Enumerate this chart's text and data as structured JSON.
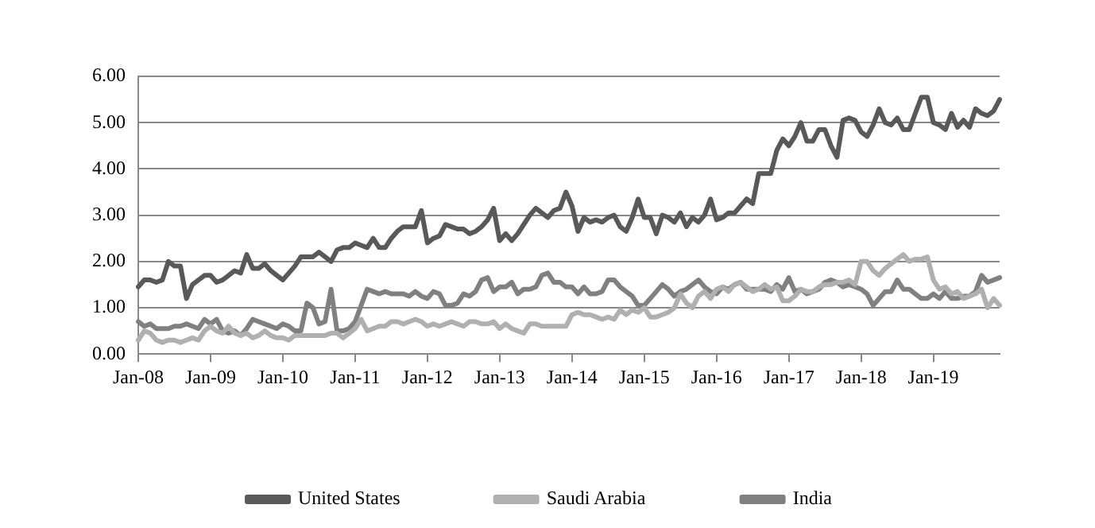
{
  "chart_data": {
    "type": "line",
    "categories": [
      "Jan-08",
      null,
      null,
      null,
      null,
      null,
      null,
      null,
      null,
      null,
      null,
      null,
      "Jan-09",
      null,
      null,
      null,
      null,
      null,
      null,
      null,
      null,
      null,
      null,
      null,
      "Jan-10",
      null,
      null,
      null,
      null,
      null,
      null,
      null,
      null,
      null,
      null,
      null,
      "Jan-11",
      null,
      null,
      null,
      null,
      null,
      null,
      null,
      null,
      null,
      null,
      null,
      "Jan-12",
      null,
      null,
      null,
      null,
      null,
      null,
      null,
      null,
      null,
      null,
      null,
      "Jan-13",
      null,
      null,
      null,
      null,
      null,
      null,
      null,
      null,
      null,
      null,
      null,
      "Jan-14",
      null,
      null,
      null,
      null,
      null,
      null,
      null,
      null,
      null,
      null,
      null,
      "Jan-15",
      null,
      null,
      null,
      null,
      null,
      null,
      null,
      null,
      null,
      null,
      null,
      "Jan-16",
      null,
      null,
      null,
      null,
      null,
      null,
      null,
      null,
      null,
      null,
      null,
      "Jan-17",
      null,
      null,
      null,
      null,
      null,
      null,
      null,
      null,
      null,
      null,
      null,
      "Jan-18",
      null,
      null,
      null,
      null,
      null,
      null,
      null,
      null,
      null,
      null,
      null,
      "Jan-19",
      null,
      null,
      null,
      null,
      null,
      null,
      null,
      null,
      null,
      null,
      null
    ],
    "series": [
      {
        "name": "United States",
        "color": "#595959",
        "values": [
          1.45,
          1.6,
          1.6,
          1.55,
          1.6,
          2.0,
          1.9,
          1.9,
          1.2,
          1.5,
          1.6,
          1.7,
          1.7,
          1.55,
          1.6,
          1.7,
          1.8,
          1.75,
          2.15,
          1.85,
          1.85,
          1.95,
          1.8,
          1.7,
          1.6,
          1.75,
          1.9,
          2.1,
          2.1,
          2.1,
          2.2,
          2.1,
          2.0,
          2.25,
          2.3,
          2.3,
          2.4,
          2.35,
          2.3,
          2.5,
          2.3,
          2.3,
          2.5,
          2.65,
          2.75,
          2.75,
          2.75,
          3.1,
          2.4,
          2.5,
          2.55,
          2.8,
          2.75,
          2.7,
          2.7,
          2.6,
          2.65,
          2.75,
          2.9,
          3.15,
          2.45,
          2.6,
          2.45,
          2.6,
          2.8,
          3.0,
          3.15,
          3.05,
          2.95,
          3.1,
          3.15,
          3.5,
          3.2,
          2.65,
          2.95,
          2.85,
          2.9,
          2.85,
          2.95,
          3.0,
          2.75,
          2.65,
          2.95,
          3.35,
          2.95,
          2.95,
          2.6,
          3.0,
          2.95,
          2.85,
          3.05,
          2.75,
          2.95,
          2.85,
          3.0,
          3.35,
          2.9,
          2.95,
          3.05,
          3.05,
          3.2,
          3.35,
          3.25,
          3.9,
          3.9,
          3.9,
          4.4,
          4.65,
          4.5,
          4.7,
          5.0,
          4.6,
          4.6,
          4.85,
          4.85,
          4.5,
          4.25,
          5.05,
          5.1,
          5.05,
          4.8,
          4.7,
          4.95,
          5.3,
          5.0,
          4.95,
          5.1,
          4.85,
          4.85,
          5.2,
          5.55,
          5.55,
          5.0,
          4.95,
          4.85,
          5.2,
          4.9,
          5.05,
          4.9,
          5.3,
          5.2,
          5.15,
          5.25,
          5.5
        ]
      },
      {
        "name": "Saudi Arabia",
        "color": "#b0b0b0",
        "values": [
          0.3,
          0.5,
          0.45,
          0.3,
          0.25,
          0.3,
          0.3,
          0.25,
          0.3,
          0.35,
          0.3,
          0.5,
          0.6,
          0.5,
          0.45,
          0.6,
          0.45,
          0.4,
          0.45,
          0.35,
          0.4,
          0.5,
          0.4,
          0.35,
          0.35,
          0.3,
          0.4,
          0.4,
          0.4,
          0.4,
          0.4,
          0.4,
          0.45,
          0.45,
          0.35,
          0.45,
          0.55,
          0.75,
          0.5,
          0.55,
          0.6,
          0.6,
          0.7,
          0.7,
          0.65,
          0.7,
          0.75,
          0.7,
          0.6,
          0.65,
          0.6,
          0.65,
          0.7,
          0.65,
          0.6,
          0.7,
          0.7,
          0.65,
          0.65,
          0.7,
          0.55,
          0.65,
          0.55,
          0.5,
          0.45,
          0.65,
          0.65,
          0.6,
          0.6,
          0.6,
          0.6,
          0.6,
          0.85,
          0.9,
          0.85,
          0.85,
          0.8,
          0.75,
          0.8,
          0.75,
          0.95,
          0.85,
          0.95,
          0.9,
          1.0,
          0.8,
          0.8,
          0.85,
          0.9,
          1.0,
          1.3,
          1.1,
          1.0,
          1.25,
          1.35,
          1.2,
          1.4,
          1.45,
          1.35,
          1.5,
          1.55,
          1.45,
          1.35,
          1.4,
          1.5,
          1.4,
          1.45,
          1.15,
          1.15,
          1.25,
          1.4,
          1.35,
          1.35,
          1.45,
          1.5,
          1.5,
          1.55,
          1.55,
          1.6,
          1.5,
          2.0,
          2.0,
          1.8,
          1.7,
          1.85,
          1.95,
          2.05,
          2.15,
          2.0,
          2.05,
          2.05,
          2.1,
          1.6,
          1.4,
          1.45,
          1.3,
          1.35,
          1.2,
          1.25,
          1.3,
          1.4,
          1.0,
          1.2,
          1.05
        ]
      },
      {
        "name": "India",
        "color": "#808080",
        "values": [
          0.7,
          0.6,
          0.65,
          0.55,
          0.55,
          0.55,
          0.6,
          0.6,
          0.65,
          0.6,
          0.55,
          0.75,
          0.65,
          0.75,
          0.5,
          0.45,
          0.5,
          0.4,
          0.55,
          0.75,
          0.7,
          0.65,
          0.6,
          0.55,
          0.65,
          0.6,
          0.5,
          0.5,
          1.1,
          1.0,
          0.65,
          0.7,
          1.4,
          0.5,
          0.5,
          0.55,
          0.7,
          1.05,
          1.4,
          1.35,
          1.3,
          1.35,
          1.3,
          1.3,
          1.3,
          1.25,
          1.35,
          1.25,
          1.2,
          1.35,
          1.3,
          1.05,
          1.05,
          1.1,
          1.3,
          1.25,
          1.35,
          1.6,
          1.65,
          1.35,
          1.45,
          1.45,
          1.55,
          1.3,
          1.4,
          1.4,
          1.45,
          1.7,
          1.75,
          1.55,
          1.55,
          1.45,
          1.45,
          1.3,
          1.45,
          1.3,
          1.3,
          1.35,
          1.6,
          1.6,
          1.45,
          1.35,
          1.25,
          1.05,
          1.05,
          1.2,
          1.35,
          1.5,
          1.4,
          1.25,
          1.35,
          1.4,
          1.5,
          1.6,
          1.45,
          1.35,
          1.3,
          1.45,
          1.4,
          1.5,
          1.55,
          1.4,
          1.4,
          1.4,
          1.4,
          1.35,
          1.5,
          1.4,
          1.65,
          1.35,
          1.4,
          1.3,
          1.35,
          1.4,
          1.55,
          1.6,
          1.55,
          1.45,
          1.5,
          1.45,
          1.4,
          1.3,
          1.05,
          1.2,
          1.35,
          1.35,
          1.6,
          1.4,
          1.4,
          1.3,
          1.2,
          1.2,
          1.3,
          1.2,
          1.35,
          1.2,
          1.2,
          1.25,
          1.25,
          1.35,
          1.7,
          1.55,
          1.6,
          1.65
        ]
      }
    ],
    "ylim": [
      0,
      6
    ],
    "yticks": [
      {
        "value": 0,
        "label": "0.00"
      },
      {
        "value": 1,
        "label": "1.00"
      },
      {
        "value": 2,
        "label": "2.00"
      },
      {
        "value": 3,
        "label": "3.00"
      },
      {
        "value": 4,
        "label": "4.00"
      },
      {
        "value": 5,
        "label": "5.00"
      },
      {
        "value": 6,
        "label": "6.00"
      }
    ],
    "grid": "y",
    "legend": "bottom",
    "marker": "none",
    "line_style": "solid"
  }
}
